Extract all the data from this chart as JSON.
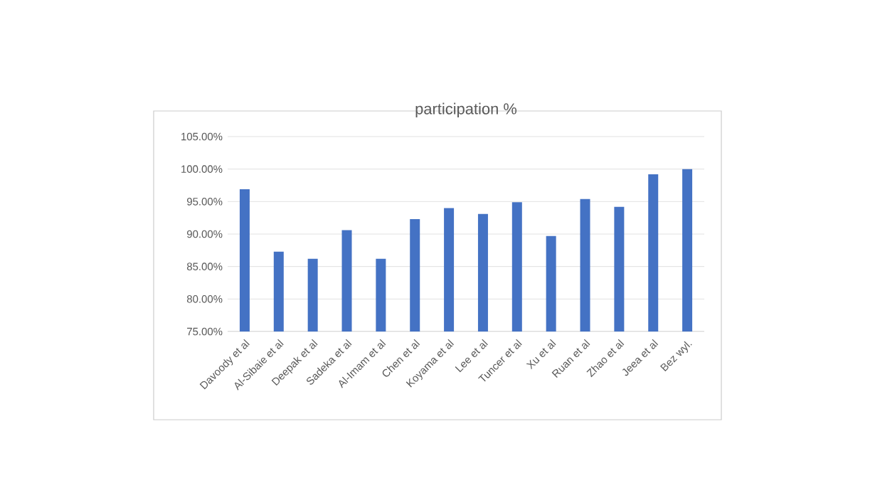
{
  "chart_data": {
    "type": "bar",
    "title": "participation %",
    "categories": [
      "Davoody et al",
      "Al-Sibaie et al",
      "Deepak et al",
      "Sadeka et al",
      "Al-Imam et al",
      "Chen et al",
      "Koyama et al",
      "Lee et al",
      "Tuncer et al",
      "Xu et al",
      "Ruan et al",
      "Zhao et al",
      "Jeea et al",
      "Bez wyl."
    ],
    "values": [
      96.9,
      87.3,
      86.2,
      90.6,
      86.2,
      92.3,
      94.0,
      93.1,
      94.9,
      89.7,
      95.4,
      94.2,
      99.2,
      100.0
    ],
    "color": "#4472c4",
    "ylim": [
      75,
      105
    ],
    "yticks": [
      {
        "value": 75,
        "label": "75.00%"
      },
      {
        "value": 80,
        "label": "80.00%"
      },
      {
        "value": 85,
        "label": "85.00%"
      },
      {
        "value": 90,
        "label": "90.00%"
      },
      {
        "value": 95,
        "label": "95.00%"
      },
      {
        "value": 100,
        "label": "100.00%"
      },
      {
        "value": 105,
        "label": "105.00%"
      }
    ],
    "grid": "y"
  }
}
